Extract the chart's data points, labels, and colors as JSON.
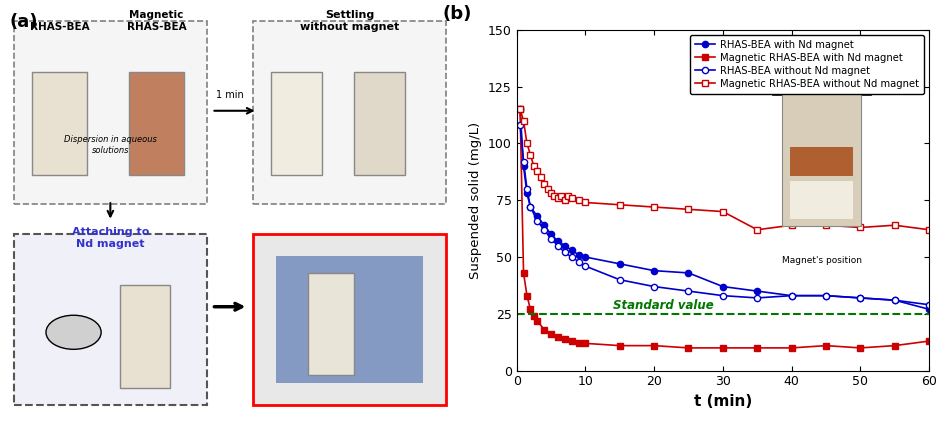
{
  "title_b": "(b)",
  "xlabel": "t (min)",
  "ylabel": "Suspended solid (mg/L)",
  "standard_value": 25,
  "standard_label": "Standard value",
  "xlim": [
    0,
    60
  ],
  "ylim": [
    0,
    150
  ],
  "xticks": [
    0,
    10,
    20,
    30,
    40,
    50,
    60
  ],
  "yticks": [
    0,
    25,
    50,
    75,
    100,
    125,
    150
  ],
  "rhas_bea_with_magnet": {
    "t": [
      0.5,
      1,
      1.5,
      2,
      3,
      4,
      5,
      6,
      7,
      8,
      9,
      10,
      15,
      20,
      25,
      30,
      35,
      40,
      45,
      50,
      55,
      60
    ],
    "ss": [
      115,
      90,
      78,
      72,
      68,
      64,
      60,
      57,
      55,
      53,
      51,
      50,
      47,
      44,
      43,
      37,
      35,
      33,
      33,
      32,
      31,
      27
    ],
    "color": "#0000cc",
    "marker": "o",
    "filled": true,
    "label": "RHAS-BEA with Nd magnet"
  },
  "magnetic_rhas_bea_with_magnet": {
    "t": [
      0.5,
      1,
      1.5,
      2,
      2.5,
      3,
      4,
      5,
      6,
      7,
      8,
      9,
      10,
      15,
      20,
      25,
      30,
      35,
      40,
      45,
      50,
      55,
      60
    ],
    "ss": [
      115,
      43,
      33,
      27,
      24,
      22,
      18,
      16,
      15,
      14,
      13,
      12,
      12,
      11,
      11,
      10,
      10,
      10,
      10,
      11,
      10,
      11,
      13
    ],
    "color": "#cc0000",
    "marker": "s",
    "filled": true,
    "label": "Magnetic RHAS-BEA with Nd magnet"
  },
  "rhas_bea_without_magnet": {
    "t": [
      0.5,
      1,
      1.5,
      2,
      3,
      4,
      5,
      6,
      7,
      8,
      9,
      10,
      15,
      20,
      25,
      30,
      35,
      40,
      45,
      50,
      55,
      60
    ],
    "ss": [
      108,
      92,
      80,
      72,
      66,
      62,
      58,
      55,
      52,
      50,
      48,
      46,
      40,
      37,
      35,
      33,
      32,
      33,
      33,
      32,
      31,
      29
    ],
    "color": "#0000cc",
    "marker": "o",
    "filled": false,
    "label": "RHAS-BEA without Nd magnet"
  },
  "magnetic_rhas_bea_without_magnet": {
    "t": [
      0.5,
      1,
      1.5,
      2,
      2.5,
      3,
      3.5,
      4,
      4.5,
      5,
      5.5,
      6,
      6.5,
      7,
      7.5,
      8,
      9,
      10,
      15,
      20,
      25,
      30,
      35,
      40,
      45,
      50,
      55,
      60
    ],
    "ss": [
      115,
      110,
      100,
      95,
      90,
      88,
      85,
      82,
      80,
      78,
      77,
      76,
      77,
      75,
      77,
      76,
      75,
      74,
      73,
      72,
      71,
      70,
      62,
      64,
      64,
      63,
      64,
      62
    ],
    "color": "#cc0000",
    "marker": "s",
    "filled": false,
    "label": "Magnetic RHAS-BEA without Nd magnet"
  },
  "magnet_annotation": "Magnet's position",
  "label_a": "(a)",
  "label_b": "(b)",
  "figsize": [
    9.48,
    4.26
  ],
  "dpi": 100
}
